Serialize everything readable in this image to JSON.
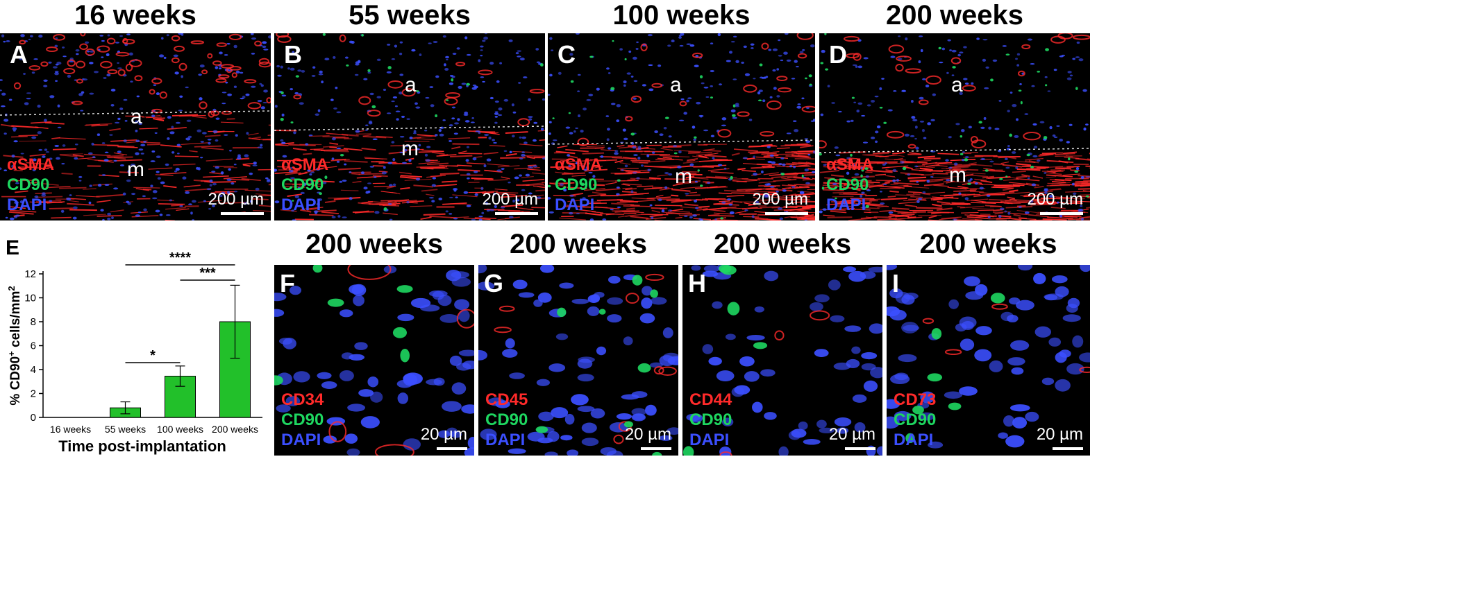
{
  "panels_top": [
    {
      "letter": "A",
      "title": "16 weeks",
      "label_a": "a",
      "label_m": "m",
      "markers": [
        "αSMA",
        "CD90",
        "DAPI"
      ],
      "scale": "200 µm"
    },
    {
      "letter": "B",
      "title": "55 weeks",
      "label_a": "a",
      "label_m": "m",
      "markers": [
        "αSMA",
        "CD90",
        "DAPI"
      ],
      "scale": "200 µm"
    },
    {
      "letter": "C",
      "title": "100 weeks",
      "label_a": "a",
      "label_m": "m",
      "markers": [
        "αSMA",
        "CD90",
        "DAPI"
      ],
      "scale": "200 µm"
    },
    {
      "letter": "D",
      "title": "200 weeks",
      "label_a": "a",
      "label_m": "m",
      "markers": [
        "αSMA",
        "CD90",
        "DAPI"
      ],
      "scale": "200 µm"
    }
  ],
  "panels_bottom": [
    {
      "letter": "F",
      "title": "200 weeks",
      "markers": [
        "CD34",
        "CD90",
        "DAPI"
      ],
      "scale": "20 µm"
    },
    {
      "letter": "G",
      "title": "200 weeks",
      "markers": [
        "CD45",
        "CD90",
        "DAPI"
      ],
      "scale": "20 µm"
    },
    {
      "letter": "H",
      "title": "200 weeks",
      "markers": [
        "CD44",
        "CD90",
        "DAPI"
      ],
      "scale": "20 µm"
    },
    {
      "letter": "I",
      "title": "200 weeks",
      "markers": [
        "CD73",
        "CD90",
        "DAPI"
      ],
      "scale": "20 µm"
    }
  ],
  "colors": {
    "red": "#ff2a2a",
    "green": "#1ed760",
    "blue": "#3b4fff",
    "bar": "#22c02a"
  },
  "chart_data": {
    "type": "bar",
    "panel_letter": "E",
    "categories": [
      "16 weeks",
      "55 weeks",
      "100 weeks",
      "200 weeks"
    ],
    "values": [
      0,
      0.8,
      3.45,
      8.0
    ],
    "errors": [
      0,
      0.5,
      0.85,
      3.05
    ],
    "ylabel_main": "% CD90",
    "ylabel_sup": "+",
    "ylabel_rest": " cells/mm",
    "ylabel_exp": "2",
    "xlabel": "Time post-implantation",
    "yticks": [
      0,
      2,
      4,
      6,
      8,
      10,
      12
    ],
    "ylim": [
      0,
      12
    ],
    "significance": [
      {
        "from": 1,
        "to": 3,
        "label": "****"
      },
      {
        "from": 2,
        "to": 3,
        "label": "***"
      },
      {
        "from": 1,
        "to": 2,
        "label": "*"
      }
    ]
  }
}
